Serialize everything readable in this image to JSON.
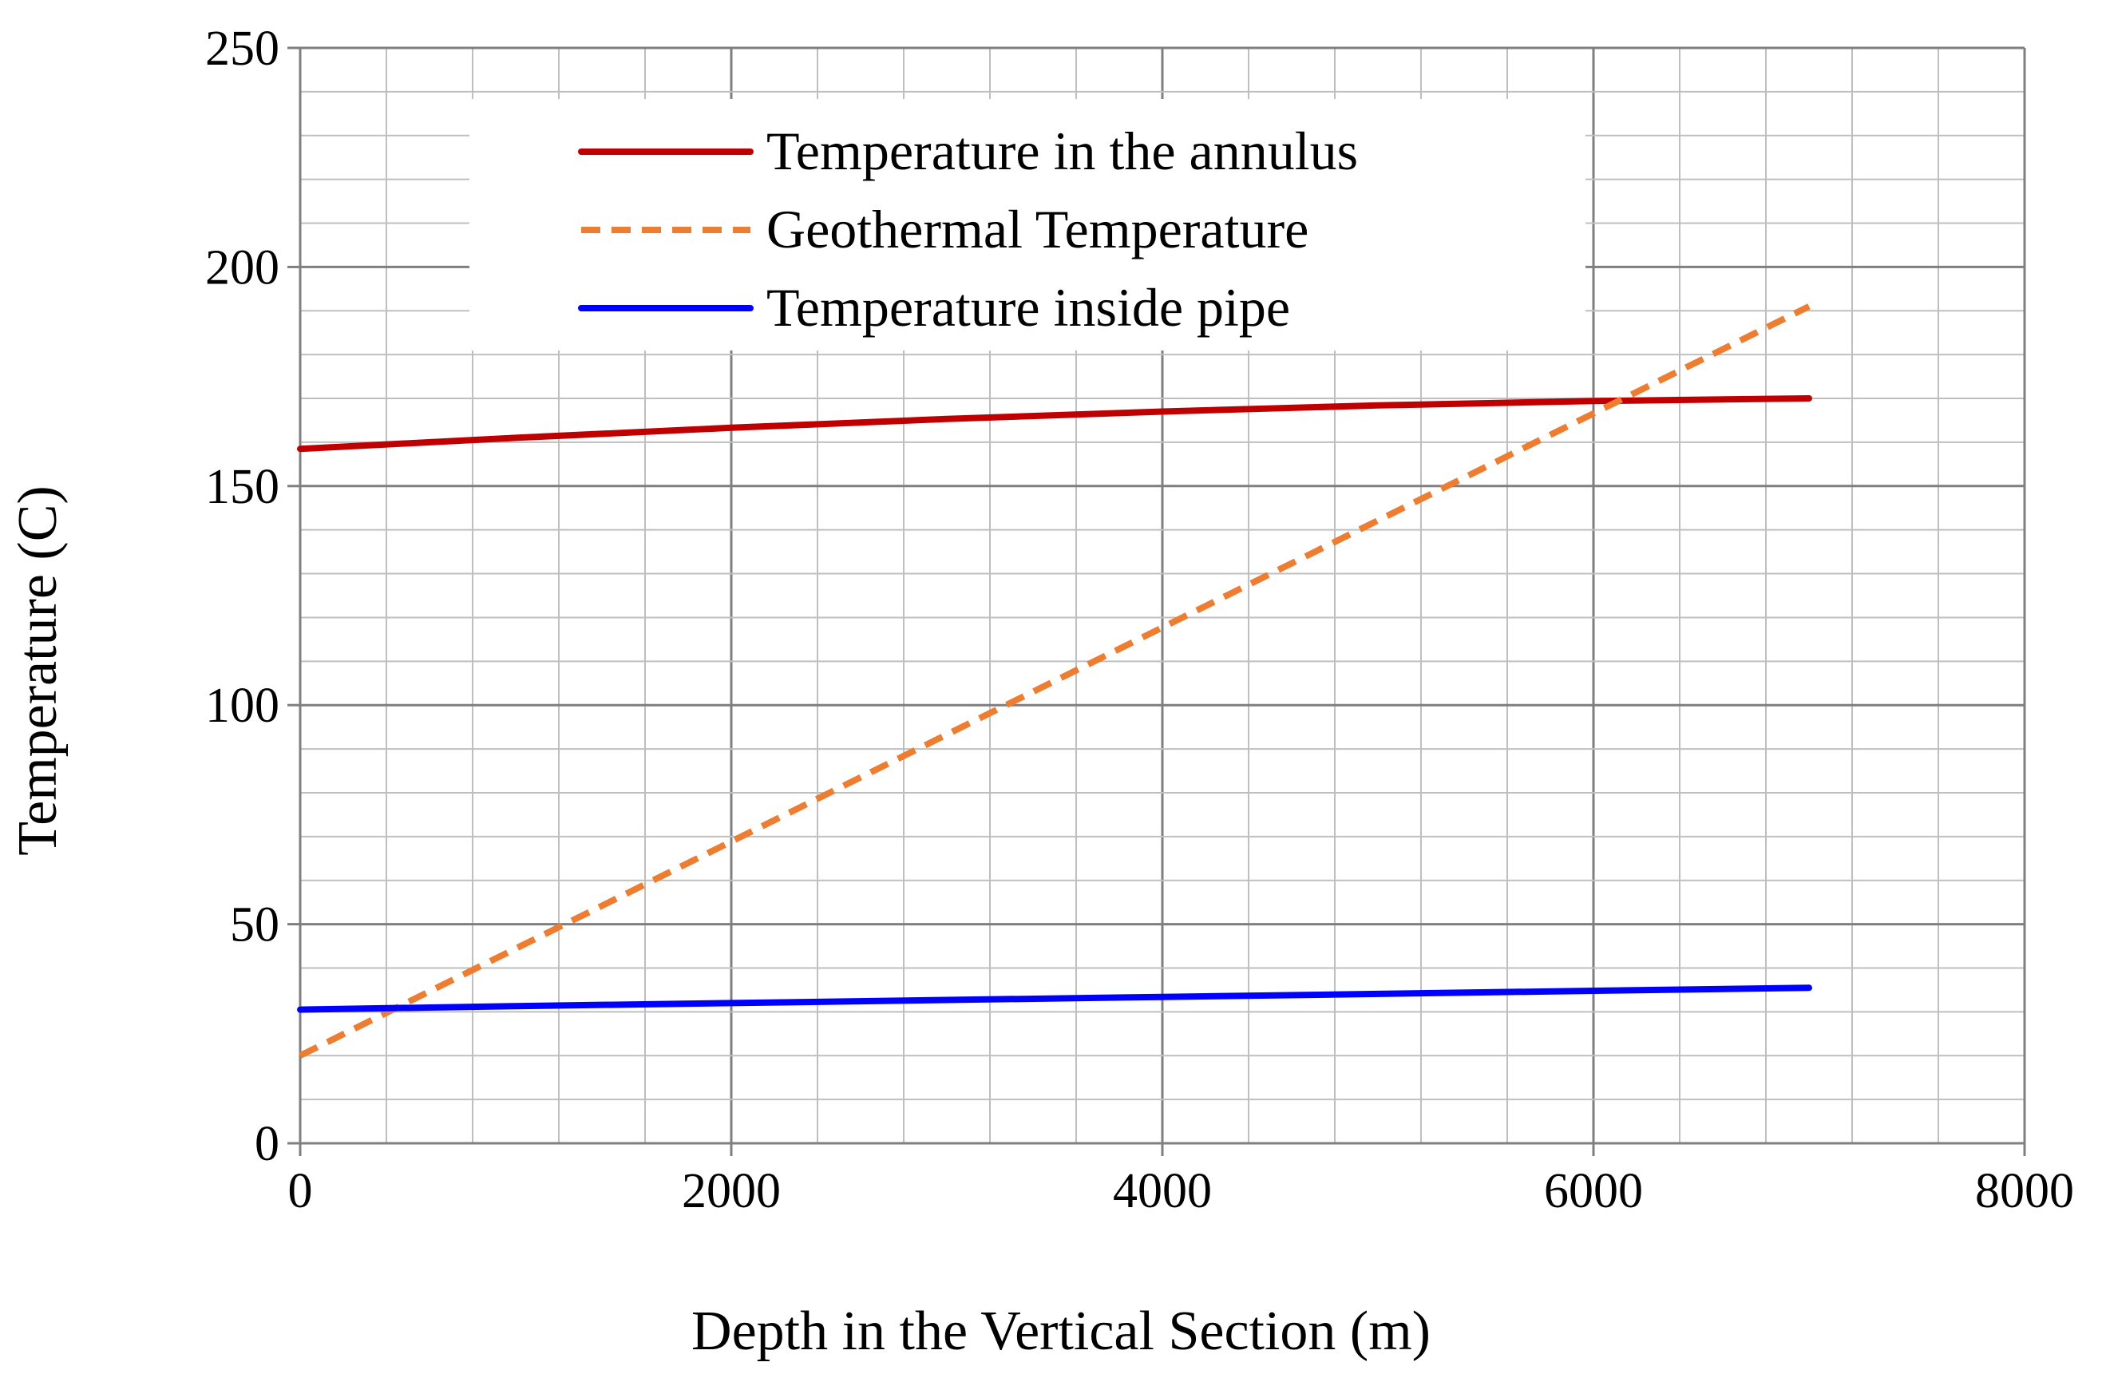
{
  "chart_data": {
    "type": "line",
    "title": "",
    "xlabel": "Depth in the Vertical Section (m)",
    "ylabel": "Temperature (C)",
    "xlim": [
      0,
      8000
    ],
    "ylim": [
      0,
      250
    ],
    "x_ticks": [
      0,
      2000,
      4000,
      6000,
      8000
    ],
    "y_ticks": [
      0,
      50,
      100,
      150,
      200,
      250
    ],
    "x_ticks_labels": [
      "0",
      "2000",
      "4000",
      "6000",
      "8000"
    ],
    "y_ticks_labels": [
      "0",
      "50",
      "100",
      "150",
      "200",
      "250"
    ],
    "grid": true,
    "grid_minor_step_x": 400,
    "grid_minor_step_y": 10,
    "legend_position": "top-center",
    "series": [
      {
        "name": "Temperature in the annulus",
        "color": "#c00000",
        "style": "solid",
        "x": [
          0,
          1000,
          2000,
          3000,
          4000,
          5000,
          6000,
          7000
        ],
        "y": [
          158.5,
          161.0,
          163.3,
          165.3,
          167.0,
          168.4,
          169.4,
          170.0
        ]
      },
      {
        "name": "Geothermal Temperature",
        "color": "#ed7d31",
        "style": "dashed",
        "x": [
          0,
          7000
        ],
        "y": [
          20,
          191
        ]
      },
      {
        "name": "Temperature inside pipe",
        "color": "#0000ff",
        "style": "solid",
        "x": [
          0,
          1000,
          2000,
          3000,
          4000,
          5000,
          6000,
          7000
        ],
        "y": [
          30.5,
          31.3,
          32.0,
          32.7,
          33.4,
          34.1,
          34.8,
          35.5
        ]
      }
    ]
  }
}
